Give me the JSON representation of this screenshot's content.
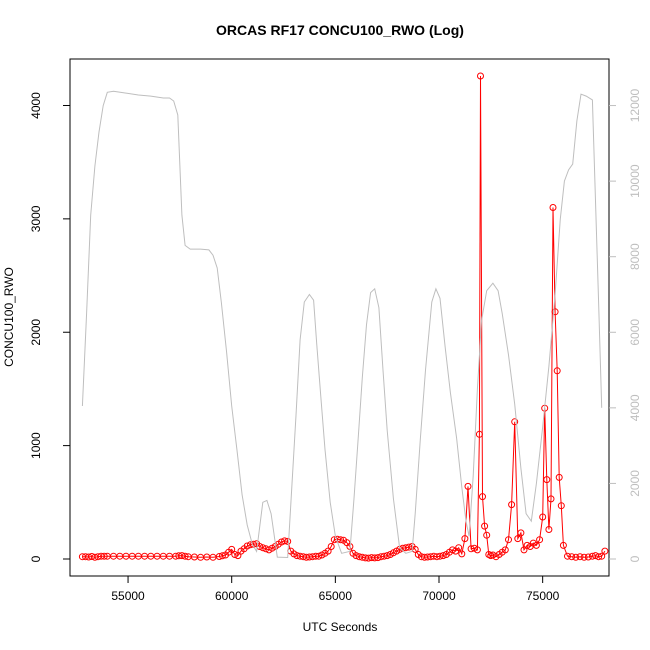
{
  "chart_data": {
    "type": "line",
    "title": "ORCAS RF17 CONCU100_RWO (Log)",
    "xlabel": "UTC Seconds",
    "ylabel": "CONCU100_RWO",
    "xlim": [
      52200,
      78200
    ],
    "ylim": [
      -150,
      4410
    ],
    "y2lim": [
      -450,
      13232
    ],
    "x_ticks": [
      55000,
      60000,
      65000,
      70000,
      75000
    ],
    "x_tick_labels": [
      "55000",
      "60000",
      "65000",
      "70000",
      "75000"
    ],
    "y_ticks": [
      0,
      1000,
      2000,
      3000,
      4000
    ],
    "y_tick_labels": [
      "0",
      "1000",
      "2000",
      "3000",
      "4000"
    ],
    "y2_ticks": [
      0,
      2000,
      4000,
      6000,
      8000,
      10000,
      12000
    ],
    "y2_tick_labels": [
      "0",
      "2000",
      "4000",
      "6000",
      "8000",
      "10000",
      "12000"
    ],
    "grid": false,
    "colors": {
      "concentration": "#ff0000",
      "altitude": "#bebebe",
      "axes": "#000000"
    },
    "series": [
      {
        "axis": "left",
        "color": "#ff0000",
        "markers": "open-circle",
        "points": [
          [
            52800,
            20
          ],
          [
            52950,
            20
          ],
          [
            53100,
            18
          ],
          [
            53250,
            22
          ],
          [
            53400,
            15
          ],
          [
            53550,
            20
          ],
          [
            53700,
            25
          ],
          [
            53850,
            25
          ],
          [
            54000,
            25
          ],
          [
            54300,
            25
          ],
          [
            54600,
            25
          ],
          [
            54900,
            25
          ],
          [
            55200,
            25
          ],
          [
            55500,
            25
          ],
          [
            55800,
            25
          ],
          [
            56100,
            25
          ],
          [
            56400,
            25
          ],
          [
            56700,
            25
          ],
          [
            57000,
            25
          ],
          [
            57300,
            25
          ],
          [
            57450,
            28
          ],
          [
            57600,
            30
          ],
          [
            57750,
            25
          ],
          [
            57900,
            20
          ],
          [
            58200,
            18
          ],
          [
            58500,
            15
          ],
          [
            58800,
            18
          ],
          [
            59100,
            15
          ],
          [
            59400,
            22
          ],
          [
            59550,
            28
          ],
          [
            59700,
            35
          ],
          [
            59850,
            60
          ],
          [
            60000,
            85
          ],
          [
            60150,
            40
          ],
          [
            60300,
            30
          ],
          [
            60450,
            70
          ],
          [
            60600,
            90
          ],
          [
            60750,
            115
          ],
          [
            60900,
            125
          ],
          [
            61050,
            130
          ],
          [
            61200,
            135
          ],
          [
            61350,
            110
          ],
          [
            61500,
            100
          ],
          [
            61650,
            90
          ],
          [
            61800,
            80
          ],
          [
            61950,
            95
          ],
          [
            62100,
            110
          ],
          [
            62250,
            130
          ],
          [
            62400,
            150
          ],
          [
            62550,
            160
          ],
          [
            62700,
            155
          ],
          [
            62850,
            70
          ],
          [
            63000,
            45
          ],
          [
            63150,
            30
          ],
          [
            63300,
            25
          ],
          [
            63450,
            20
          ],
          [
            63600,
            15
          ],
          [
            63750,
            18
          ],
          [
            63900,
            20
          ],
          [
            64050,
            25
          ],
          [
            64200,
            25
          ],
          [
            64350,
            35
          ],
          [
            64500,
            50
          ],
          [
            64650,
            70
          ],
          [
            64800,
            110
          ],
          [
            64950,
            170
          ],
          [
            65100,
            175
          ],
          [
            65250,
            170
          ],
          [
            65400,
            165
          ],
          [
            65550,
            145
          ],
          [
            65700,
            110
          ],
          [
            65850,
            50
          ],
          [
            66000,
            30
          ],
          [
            66150,
            20
          ],
          [
            66300,
            15
          ],
          [
            66450,
            10
          ],
          [
            66600,
            8
          ],
          [
            66750,
            12
          ],
          [
            66900,
            10
          ],
          [
            67050,
            12
          ],
          [
            67200,
            20
          ],
          [
            67350,
            25
          ],
          [
            67500,
            30
          ],
          [
            67650,
            40
          ],
          [
            67800,
            55
          ],
          [
            67950,
            70
          ],
          [
            68100,
            85
          ],
          [
            68250,
            95
          ],
          [
            68400,
            100
          ],
          [
            68550,
            105
          ],
          [
            68700,
            110
          ],
          [
            68850,
            85
          ],
          [
            69000,
            40
          ],
          [
            69150,
            20
          ],
          [
            69300,
            15
          ],
          [
            69450,
            18
          ],
          [
            69600,
            20
          ],
          [
            69750,
            25
          ],
          [
            69900,
            20
          ],
          [
            70050,
            25
          ],
          [
            70200,
            30
          ],
          [
            70350,
            40
          ],
          [
            70500,
            60
          ],
          [
            70650,
            80
          ],
          [
            70800,
            70
          ],
          [
            70950,
            100
          ],
          [
            71100,
            45
          ],
          [
            71250,
            180
          ],
          [
            71400,
            640
          ],
          [
            71550,
            90
          ],
          [
            71700,
            95
          ],
          [
            71850,
            80
          ],
          [
            71950,
            1100
          ],
          [
            72000,
            4260
          ],
          [
            72100,
            550
          ],
          [
            72200,
            290
          ],
          [
            72300,
            210
          ],
          [
            72400,
            40
          ],
          [
            72500,
            30
          ],
          [
            72600,
            35
          ],
          [
            72750,
            20
          ],
          [
            72900,
            40
          ],
          [
            73050,
            60
          ],
          [
            73200,
            80
          ],
          [
            73350,
            170
          ],
          [
            73500,
            480
          ],
          [
            73650,
            1210
          ],
          [
            73800,
            180
          ],
          [
            73950,
            230
          ],
          [
            74100,
            80
          ],
          [
            74250,
            120
          ],
          [
            74400,
            110
          ],
          [
            74550,
            140
          ],
          [
            74700,
            120
          ],
          [
            74850,
            170
          ],
          [
            75000,
            370
          ],
          [
            75100,
            1330
          ],
          [
            75200,
            700
          ],
          [
            75300,
            260
          ],
          [
            75400,
            530
          ],
          [
            75500,
            3100
          ],
          [
            75600,
            2180
          ],
          [
            75700,
            1660
          ],
          [
            75800,
            720
          ],
          [
            75900,
            470
          ],
          [
            76000,
            120
          ],
          [
            76200,
            25
          ],
          [
            76400,
            20
          ],
          [
            76600,
            15
          ],
          [
            76800,
            20
          ],
          [
            77000,
            15
          ],
          [
            77200,
            18
          ],
          [
            77400,
            25
          ],
          [
            77550,
            30
          ],
          [
            77700,
            20
          ],
          [
            77850,
            25
          ],
          [
            78000,
            70
          ]
        ]
      },
      {
        "axis": "right",
        "color": "#bebebe",
        "markers": "none",
        "points": [
          [
            52800,
            4050
          ],
          [
            53000,
            6500
          ],
          [
            53200,
            9100
          ],
          [
            53400,
            10400
          ],
          [
            53600,
            11300
          ],
          [
            53800,
            12000
          ],
          [
            54000,
            12350
          ],
          [
            54300,
            12380
          ],
          [
            54900,
            12330
          ],
          [
            55500,
            12280
          ],
          [
            56100,
            12250
          ],
          [
            56700,
            12200
          ],
          [
            57000,
            12200
          ],
          [
            57200,
            12120
          ],
          [
            57400,
            11750
          ],
          [
            57600,
            9100
          ],
          [
            57750,
            8300
          ],
          [
            58000,
            8200
          ],
          [
            58500,
            8200
          ],
          [
            58900,
            8180
          ],
          [
            59100,
            8040
          ],
          [
            59300,
            7700
          ],
          [
            59500,
            6800
          ],
          [
            59750,
            5500
          ],
          [
            60000,
            4050
          ],
          [
            60250,
            2900
          ],
          [
            60500,
            1700
          ],
          [
            60750,
            900
          ],
          [
            61000,
            380
          ],
          [
            61200,
            200
          ],
          [
            61500,
            1500
          ],
          [
            61700,
            1550
          ],
          [
            61900,
            1200
          ],
          [
            62200,
            50
          ],
          [
            62700,
            40
          ],
          [
            62900,
            1900
          ],
          [
            63100,
            3800
          ],
          [
            63300,
            5800
          ],
          [
            63500,
            6800
          ],
          [
            63750,
            7000
          ],
          [
            63950,
            6850
          ],
          [
            64100,
            5700
          ],
          [
            64300,
            4300
          ],
          [
            64500,
            2900
          ],
          [
            64750,
            1500
          ],
          [
            65000,
            600
          ],
          [
            65300,
            150
          ],
          [
            65700,
            200
          ],
          [
            65900,
            1600
          ],
          [
            66100,
            3200
          ],
          [
            66300,
            4800
          ],
          [
            66500,
            6200
          ],
          [
            66700,
            7050
          ],
          [
            66900,
            7150
          ],
          [
            67100,
            6650
          ],
          [
            67300,
            5000
          ],
          [
            67500,
            3400
          ],
          [
            67800,
            1600
          ],
          [
            68100,
            300
          ],
          [
            68400,
            150
          ],
          [
            68700,
            200
          ],
          [
            68850,
            1200
          ],
          [
            69100,
            3200
          ],
          [
            69350,
            5000
          ],
          [
            69650,
            6800
          ],
          [
            69850,
            7150
          ],
          [
            70050,
            6900
          ],
          [
            70300,
            5600
          ],
          [
            70550,
            4400
          ],
          [
            70850,
            3200
          ],
          [
            71100,
            1900
          ],
          [
            71300,
            1000
          ],
          [
            71450,
            600
          ],
          [
            71650,
            2200
          ],
          [
            71850,
            4500
          ],
          [
            72050,
            6300
          ],
          [
            72300,
            7100
          ],
          [
            72600,
            7300
          ],
          [
            72850,
            7100
          ],
          [
            73050,
            6500
          ],
          [
            73350,
            5400
          ],
          [
            73650,
            4100
          ],
          [
            73950,
            2400
          ],
          [
            74200,
            1200
          ],
          [
            74450,
            1000
          ],
          [
            74700,
            2000
          ],
          [
            75000,
            3500
          ],
          [
            75300,
            5100
          ],
          [
            75600,
            7000
          ],
          [
            75850,
            9000
          ],
          [
            76050,
            10000
          ],
          [
            76250,
            10300
          ],
          [
            76450,
            10450
          ],
          [
            76650,
            11600
          ],
          [
            76850,
            12300
          ],
          [
            77100,
            12250
          ],
          [
            77400,
            12150
          ],
          [
            77700,
            6800
          ],
          [
            77850,
            4000
          ]
        ]
      }
    ]
  }
}
